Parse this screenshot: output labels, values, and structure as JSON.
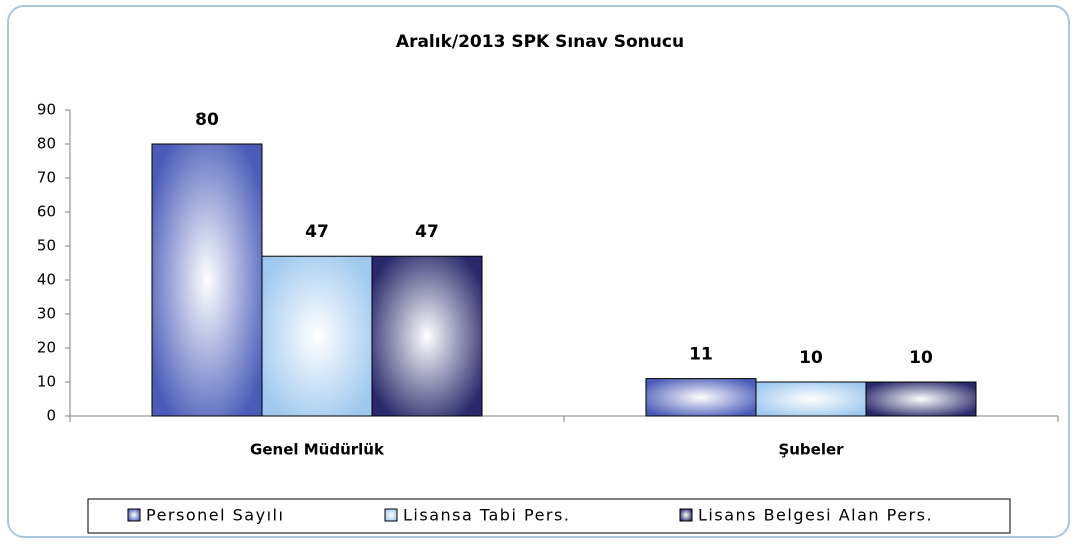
{
  "chart_data": {
    "type": "bar",
    "title": "Aralık/2013 SPK Sınav Sonucu",
    "categories": [
      "Genel Müdürlük",
      "Şubeler"
    ],
    "series": [
      {
        "name": "Personel Sayılı",
        "color": "#4a5cb8",
        "values": [
          80,
          11
        ]
      },
      {
        "name": "Lisansa Tabi Pers.",
        "color": "#9ec8ee",
        "values": [
          47,
          10
        ]
      },
      {
        "name": "Lisans Belgesi Alan Pers.",
        "color": "#28286a",
        "values": [
          47,
          10
        ]
      }
    ],
    "ylim": [
      0,
      90
    ],
    "yticks": [
      0,
      10,
      20,
      30,
      40,
      50,
      60,
      70,
      80,
      90
    ],
    "grid": false,
    "legend": "bottom"
  }
}
